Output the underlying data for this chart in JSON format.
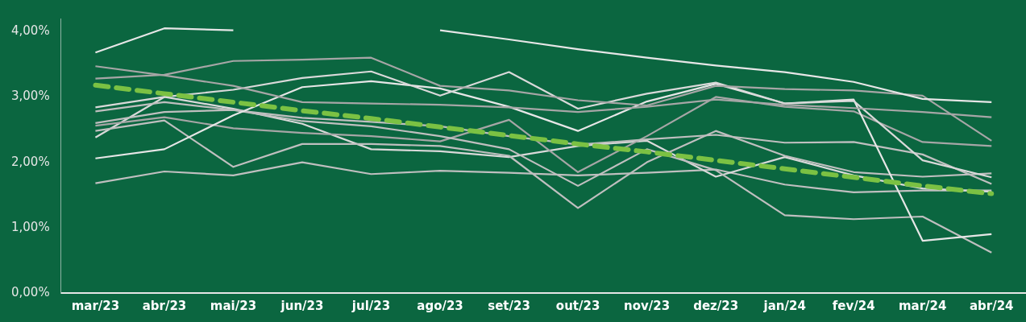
{
  "chart_data": {
    "type": "line",
    "categories": [
      "mar/23",
      "abr/23",
      "mai/23",
      "jun/23",
      "jul/23",
      "ago/23",
      "set/23",
      "out/23",
      "nov/23",
      "dez/23",
      "jan/24",
      "fev/24",
      "mar/24",
      "abr/24"
    ],
    "ylim": [
      0,
      4.2
    ],
    "yticks": [
      {
        "value": 0,
        "label": "0,00%"
      },
      {
        "value": 1,
        "label": "1,00%"
      },
      {
        "value": 2,
        "label": "2,00%"
      },
      {
        "value": 3,
        "label": "3,00%"
      },
      {
        "value": 4,
        "label": "4,00%"
      }
    ],
    "grid": false,
    "legend": false,
    "marker": "none",
    "line_style": "solid",
    "series": [
      {
        "color": "#e6e6e6",
        "values": [
          3.68,
          4.05,
          4.02,
          null,
          null,
          4.02,
          3.88,
          3.73,
          3.6,
          3.48,
          3.38,
          3.23,
          2.97,
          2.92
        ]
      },
      {
        "color": "#a6a6a6",
        "values": [
          3.28,
          3.34,
          3.55,
          3.57,
          3.6,
          3.17,
          3.1,
          2.95,
          2.87,
          3.17,
          3.12,
          3.1,
          3.02,
          2.33
        ]
      },
      {
        "color": "#a6a6a6",
        "values": [
          3.47,
          3.33,
          3.17,
          2.92,
          2.9,
          2.88,
          2.84,
          2.77,
          2.85,
          2.96,
          2.88,
          2.83,
          2.77,
          2.69
        ]
      },
      {
        "color": "#d9d9d9",
        "values": [
          2.84,
          3.0,
          3.11,
          3.29,
          3.39,
          3.02,
          3.38,
          2.82,
          3.05,
          3.22,
          2.9,
          2.94,
          2.03,
          1.77
        ]
      },
      {
        "color": "#e6e6e6",
        "values": [
          2.06,
          2.2,
          2.72,
          3.15,
          3.24,
          3.13,
          2.85,
          2.48,
          2.93,
          3.2,
          2.9,
          2.96,
          0.8,
          0.9
        ]
      },
      {
        "color": "#bfbfbf",
        "values": [
          2.78,
          2.92,
          2.8,
          2.68,
          2.62,
          2.55,
          2.4,
          2.27,
          2.35,
          2.42,
          2.3,
          2.31,
          2.12,
          1.67
        ]
      },
      {
        "color": "#bfbfbf",
        "values": [
          2.6,
          2.77,
          2.8,
          2.63,
          2.55,
          2.4,
          2.2,
          1.64,
          2.2,
          1.88,
          1.19,
          1.13,
          1.17,
          0.62
        ]
      },
      {
        "color": "#a6a6a6",
        "values": [
          2.56,
          2.69,
          2.52,
          2.45,
          2.4,
          2.32,
          2.65,
          1.85,
          2.4,
          3.0,
          2.85,
          2.78,
          2.31,
          2.25
        ]
      },
      {
        "color": "#bfbfbf",
        "values": [
          2.48,
          2.64,
          1.93,
          2.28,
          2.28,
          2.25,
          2.1,
          1.3,
          2.0,
          2.48,
          2.1,
          1.85,
          1.78,
          1.83
        ]
      },
      {
        "color": "#d9d9d9",
        "values": [
          2.38,
          3.0,
          2.82,
          2.59,
          2.2,
          2.17,
          2.08,
          2.25,
          2.33,
          1.78,
          2.08,
          1.8,
          1.6,
          1.55
        ]
      },
      {
        "color": "#bfbfbf",
        "values": [
          1.68,
          1.86,
          1.8,
          2.0,
          1.82,
          1.87,
          1.84,
          1.8,
          1.84,
          1.89,
          1.66,
          1.54,
          1.57,
          1.57
        ]
      },
      {
        "color": "#7bc143",
        "line_style": "dashed",
        "values": [
          3.18,
          3.05,
          2.92,
          2.79,
          2.67,
          2.54,
          2.41,
          2.28,
          2.16,
          2.03,
          1.9,
          1.77,
          1.64,
          1.52
        ]
      }
    ]
  }
}
